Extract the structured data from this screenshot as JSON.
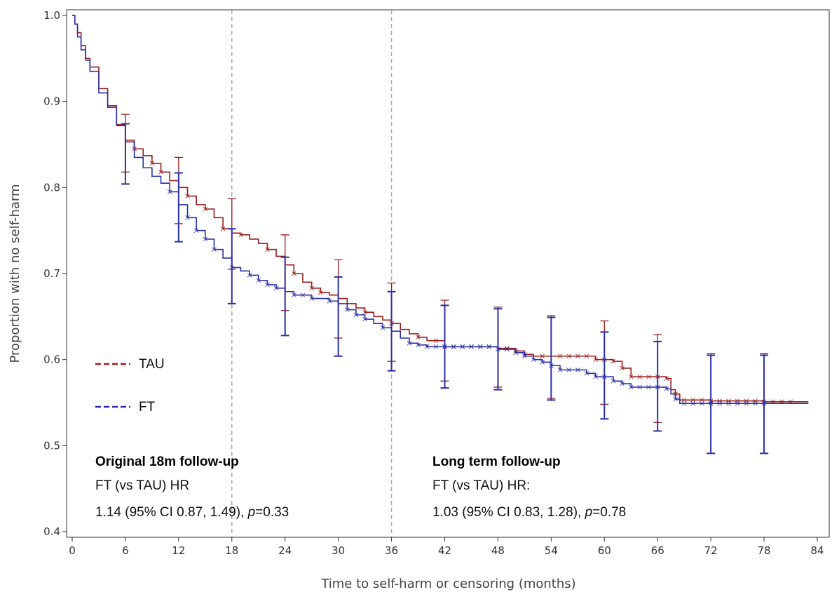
{
  "chart_data": {
    "type": "line",
    "subtype": "kaplan-meier step curve with censoring marks and error bars",
    "xlabel": "Time to self-harm or censoring (months)",
    "ylabel": "Proportion with no self-harm",
    "xlim": [
      0,
      84
    ],
    "ylim": [
      0.4,
      1.0
    ],
    "x_ticks": [
      0,
      6,
      12,
      18,
      24,
      30,
      36,
      42,
      48,
      54,
      60,
      66,
      72,
      78,
      84
    ],
    "x_tick_labels": [
      "0",
      "6",
      "12",
      "18",
      "24",
      "30",
      "36",
      "42",
      "48",
      "54",
      "60",
      "66",
      "72",
      "78",
      "84"
    ],
    "y_ticks": [
      0.4,
      0.5,
      0.6,
      0.7,
      0.8,
      0.9,
      1.0
    ],
    "y_tick_labels": [
      "0.4",
      "0.5",
      "0.6",
      "0.7",
      "0.8",
      "0.9",
      "1.0"
    ],
    "reference_lines_x": [
      18,
      36
    ],
    "legend_position": "middle-left",
    "series": [
      {
        "name": "TAU",
        "color": "#9b1c1c",
        "line_style_legend": "dashed",
        "points": [
          [
            0,
            1.0
          ],
          [
            0.3,
            0.99
          ],
          [
            0.6,
            0.98
          ],
          [
            1,
            0.965
          ],
          [
            1.5,
            0.95
          ],
          [
            2,
            0.94
          ],
          [
            3,
            0.915
          ],
          [
            4,
            0.895
          ],
          [
            5,
            0.873
          ],
          [
            6,
            0.855
          ],
          [
            7,
            0.845
          ],
          [
            8,
            0.837
          ],
          [
            9,
            0.828
          ],
          [
            10,
            0.818
          ],
          [
            11,
            0.808
          ],
          [
            12,
            0.8
          ],
          [
            13,
            0.79
          ],
          [
            14,
            0.78
          ],
          [
            15,
            0.775
          ],
          [
            16,
            0.765
          ],
          [
            17,
            0.752
          ],
          [
            18,
            0.747
          ],
          [
            19,
            0.745
          ],
          [
            20,
            0.74
          ],
          [
            21,
            0.735
          ],
          [
            22,
            0.728
          ],
          [
            23,
            0.72
          ],
          [
            24,
            0.71
          ],
          [
            25,
            0.7
          ],
          [
            26,
            0.69
          ],
          [
            27,
            0.683
          ],
          [
            28,
            0.678
          ],
          [
            29,
            0.675
          ],
          [
            30,
            0.671
          ],
          [
            31,
            0.665
          ],
          [
            32,
            0.66
          ],
          [
            33,
            0.655
          ],
          [
            34,
            0.65
          ],
          [
            35,
            0.646
          ],
          [
            36,
            0.642
          ],
          [
            37,
            0.635
          ],
          [
            38,
            0.63
          ],
          [
            39,
            0.626
          ],
          [
            40,
            0.622
          ],
          [
            42,
            0.615
          ],
          [
            48,
            0.613
          ],
          [
            50,
            0.61
          ],
          [
            51,
            0.606
          ],
          [
            52,
            0.604
          ],
          [
            58,
            0.604
          ],
          [
            59,
            0.6
          ],
          [
            61,
            0.598
          ],
          [
            62,
            0.59
          ],
          [
            63,
            0.58
          ],
          [
            67,
            0.578
          ],
          [
            67.5,
            0.565
          ],
          [
            68,
            0.56
          ],
          [
            68.5,
            0.553
          ],
          [
            72,
            0.552
          ],
          [
            78,
            0.551
          ],
          [
            83,
            0.551
          ]
        ],
        "censor_x": [
          7,
          9,
          10,
          13,
          15,
          17,
          19,
          22,
          25,
          27,
          28,
          33,
          36,
          39,
          41,
          42,
          43,
          44,
          45,
          46,
          47,
          49,
          50,
          51,
          53,
          55,
          56,
          57,
          58,
          59,
          60,
          61,
          62,
          63,
          64,
          65,
          66,
          67,
          68,
          69,
          70,
          71,
          72,
          73,
          74,
          75,
          76,
          77,
          78,
          79,
          80,
          81
        ],
        "error_bars": [
          {
            "x": 6,
            "y": 0.855,
            "lower": 0.818,
            "upper": 0.885
          },
          {
            "x": 12,
            "y": 0.8,
            "lower": 0.758,
            "upper": 0.835
          },
          {
            "x": 18,
            "y": 0.747,
            "lower": 0.705,
            "upper": 0.787
          },
          {
            "x": 24,
            "y": 0.71,
            "lower": 0.657,
            "upper": 0.745
          },
          {
            "x": 30,
            "y": 0.671,
            "lower": 0.625,
            "upper": 0.716
          },
          {
            "x": 36,
            "y": 0.642,
            "lower": 0.598,
            "upper": 0.689
          },
          {
            "x": 42,
            "y": 0.615,
            "lower": 0.575,
            "upper": 0.669
          },
          {
            "x": 48,
            "y": 0.613,
            "lower": 0.568,
            "upper": 0.661
          },
          {
            "x": 54,
            "y": 0.604,
            "lower": 0.555,
            "upper": 0.651
          },
          {
            "x": 60,
            "y": 0.598,
            "lower": 0.548,
            "upper": 0.645
          },
          {
            "x": 66,
            "y": 0.578,
            "lower": 0.527,
            "upper": 0.629
          },
          {
            "x": 72,
            "y": 0.552,
            "lower": 0.491,
            "upper": 0.607
          },
          {
            "x": 78,
            "y": 0.551,
            "lower": 0.491,
            "upper": 0.607
          }
        ]
      },
      {
        "name": "FT",
        "color": "#2b2fa8",
        "line_style_legend": "dashed",
        "points": [
          [
            0,
            1.0
          ],
          [
            0.3,
            0.99
          ],
          [
            0.6,
            0.975
          ],
          [
            1,
            0.96
          ],
          [
            1.5,
            0.948
          ],
          [
            2,
            0.935
          ],
          [
            3,
            0.91
          ],
          [
            4,
            0.893
          ],
          [
            5,
            0.872
          ],
          [
            6,
            0.853
          ],
          [
            7,
            0.835
          ],
          [
            8,
            0.823
          ],
          [
            9,
            0.813
          ],
          [
            10,
            0.805
          ],
          [
            11,
            0.795
          ],
          [
            12,
            0.78
          ],
          [
            13,
            0.765
          ],
          [
            14,
            0.75
          ],
          [
            15,
            0.74
          ],
          [
            16,
            0.728
          ],
          [
            17,
            0.718
          ],
          [
            18,
            0.707
          ],
          [
            19,
            0.703
          ],
          [
            20,
            0.698
          ],
          [
            21,
            0.692
          ],
          [
            22,
            0.687
          ],
          [
            23,
            0.683
          ],
          [
            24,
            0.679
          ],
          [
            25,
            0.675
          ],
          [
            27,
            0.671
          ],
          [
            29,
            0.668
          ],
          [
            30,
            0.665
          ],
          [
            31,
            0.658
          ],
          [
            32,
            0.652
          ],
          [
            33,
            0.647
          ],
          [
            34,
            0.642
          ],
          [
            35,
            0.637
          ],
          [
            36,
            0.633
          ],
          [
            37,
            0.625
          ],
          [
            38,
            0.619
          ],
          [
            39,
            0.617
          ],
          [
            40,
            0.615
          ],
          [
            48,
            0.612
          ],
          [
            50,
            0.608
          ],
          [
            51,
            0.604
          ],
          [
            52,
            0.6
          ],
          [
            53,
            0.597
          ],
          [
            54,
            0.593
          ],
          [
            55,
            0.588
          ],
          [
            58,
            0.584
          ],
          [
            59,
            0.58
          ],
          [
            61,
            0.575
          ],
          [
            62,
            0.572
          ],
          [
            63,
            0.568
          ],
          [
            67,
            0.566
          ],
          [
            67.5,
            0.56
          ],
          [
            68,
            0.554
          ],
          [
            68.5,
            0.549
          ],
          [
            78,
            0.549
          ],
          [
            83,
            0.549
          ]
        ],
        "censor_x": [
          11,
          13,
          14,
          15,
          16,
          18,
          20,
          21,
          22,
          23,
          25,
          26,
          27,
          29,
          31,
          32,
          33,
          35,
          38,
          39,
          40,
          41,
          42,
          43,
          44,
          45,
          46,
          47,
          48,
          49,
          50,
          51,
          52,
          53,
          54,
          55,
          56,
          57,
          58,
          59,
          60,
          61,
          62,
          63,
          64,
          65,
          66,
          67,
          68,
          69,
          70,
          71,
          72,
          73,
          74,
          75,
          76,
          77,
          78
        ],
        "error_bars": [
          {
            "x": 6,
            "y": 0.853,
            "lower": 0.804,
            "upper": 0.874
          },
          {
            "x": 12,
            "y": 0.78,
            "lower": 0.737,
            "upper": 0.817
          },
          {
            "x": 18,
            "y": 0.707,
            "lower": 0.665,
            "upper": 0.752
          },
          {
            "x": 24,
            "y": 0.679,
            "lower": 0.628,
            "upper": 0.719
          },
          {
            "x": 30,
            "y": 0.665,
            "lower": 0.604,
            "upper": 0.696
          },
          {
            "x": 36,
            "y": 0.633,
            "lower": 0.587,
            "upper": 0.679
          },
          {
            "x": 42,
            "y": 0.613,
            "lower": 0.567,
            "upper": 0.663
          },
          {
            "x": 48,
            "y": 0.612,
            "lower": 0.565,
            "upper": 0.659
          },
          {
            "x": 54,
            "y": 0.593,
            "lower": 0.553,
            "upper": 0.649
          },
          {
            "x": 60,
            "y": 0.58,
            "lower": 0.531,
            "upper": 0.632
          },
          {
            "x": 66,
            "y": 0.566,
            "lower": 0.517,
            "upper": 0.621
          },
          {
            "x": 72,
            "y": 0.549,
            "lower": 0.491,
            "upper": 0.605
          },
          {
            "x": 78,
            "y": 0.549,
            "lower": 0.491,
            "upper": 0.605
          }
        ]
      }
    ],
    "annotations": [
      {
        "id": "original",
        "heading": "Original 18m follow-up",
        "line1": "FT (vs TAU) HR",
        "line2_prefix": "1.14 (95% CI 0.87, 1.49), ",
        "p_label": "p",
        "p_value": "=0.33"
      },
      {
        "id": "longterm",
        "heading": "Long term follow-up",
        "line1": "FT (vs TAU) HR:",
        "line2_prefix": "1.03 (95% CI 0.83, 1.28), ",
        "p_label": "p",
        "p_value": "=0.78"
      }
    ]
  }
}
